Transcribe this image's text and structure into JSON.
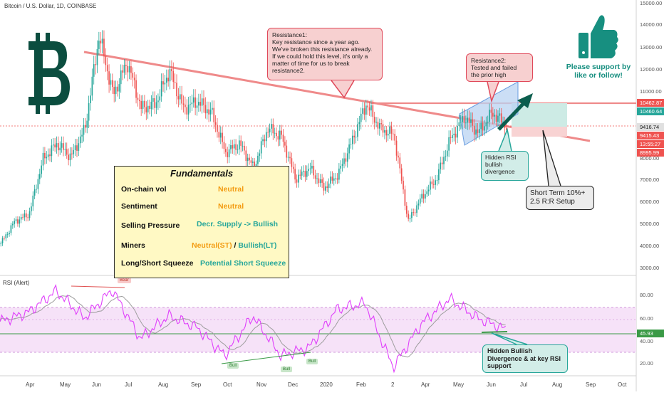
{
  "header": {
    "title": "Bitcoin / U.S. Dollar, 1D, COINBASE"
  },
  "rsi_panel": {
    "label": "RSI (Alert)",
    "signal_bear": "Bear",
    "signal_bull": "Bull"
  },
  "annotations": {
    "resistance1": [
      "Resistance1:",
      "Key resistance since a year ago.",
      "We've broken this resistance already.",
      "If we could hold this level, it's only a",
      "matter of time for us to break",
      "resistance2."
    ],
    "resistance2": [
      "Resistance2:",
      "Tested and failed",
      "the prior high"
    ],
    "hidden_rsi": [
      "Hidden RSI",
      "bullish",
      "divergence"
    ],
    "short_term": [
      "Short Term 10%+",
      "2.5 R:R Setup"
    ],
    "hidden_bullish": [
      "Hidden Bullish",
      "Divergence & at key RSI",
      "support"
    ],
    "support": [
      "Please support by",
      "like or follow!"
    ]
  },
  "fundamentals": {
    "title": "Fundamentals",
    "rows": [
      {
        "label": "On-chain vol",
        "value": "Neutral"
      },
      {
        "label": "Sentiment",
        "value": "Neutral"
      },
      {
        "label": "Selling Pressure",
        "value": "Decr. Supply -> Bullish"
      },
      {
        "label": "Miners",
        "value_a": "Neutral(ST)",
        "sep": " / ",
        "value_b": "Bullish(LT)"
      },
      {
        "label": "Long/Short Squeeze",
        "value": "Potential Short Squeeze"
      }
    ]
  },
  "colors": {
    "up": "#26a69a",
    "down": "#ef5350",
    "neutral_text": "#f39c12",
    "bullish_text": "#26a69a",
    "rsi_line": "#e040fb",
    "brand": "#0b4d3f"
  },
  "icons": {
    "logo": "bitcoin-logo",
    "thumb": "thumbs-up-icon"
  },
  "chart_data": {
    "type": "candlestick",
    "title": "Bitcoin / U.S. Dollar, 1D, COINBASE",
    "x_ticks": [
      "Apr",
      "May",
      "Jun",
      "Jul",
      "Aug",
      "Sep",
      "Oct",
      "Nov",
      "Dec",
      "2020",
      "Feb",
      "2",
      "Apr",
      "May",
      "Jun",
      "Jul",
      "Aug",
      "Sep",
      "Oct"
    ],
    "y_ticks": [
      "15000.00",
      "14000.00",
      "13000.00",
      "12000.00",
      "11000.00",
      "10000.00",
      "9000.00",
      "8000.00",
      "7000.00",
      "6000.00",
      "5000.00",
      "4000.00",
      "3000.00"
    ],
    "ylim": [
      3000,
      15000
    ],
    "price_tags": [
      {
        "label": "10462.87",
        "color": "#ef5350"
      },
      {
        "label": "10460.64",
        "color": "#26a69a"
      },
      {
        "label": "9416.74",
        "color": "#e0e0e0"
      },
      {
        "label": "9415.43",
        "color": "#ef5350"
      },
      {
        "label": "13:55:27",
        "color": "#ef5350"
      },
      {
        "label": "8995.99",
        "color": "#ef5350"
      }
    ],
    "close_path": [
      [
        "Apr 2019",
        4100
      ],
      [
        "Apr 15",
        5100
      ],
      [
        "May 1",
        5400
      ],
      [
        "May 15",
        7900
      ],
      [
        "May 30",
        8600
      ],
      [
        "Jun 10",
        8000
      ],
      [
        "Jun 20",
        9300
      ],
      [
        "Jun 26",
        13500
      ],
      [
        "Jul 1",
        10800
      ],
      [
        "Jul 10",
        12300
      ],
      [
        "Jul 20",
        10200
      ],
      [
        "Aug 1",
        10400
      ],
      [
        "Aug 6",
        11900
      ],
      [
        "Aug 20",
        10200
      ],
      [
        "Sep 1",
        10500
      ],
      [
        "Sep 20",
        10000
      ],
      [
        "Sep 26",
        8200
      ],
      [
        "Oct 10",
        8600
      ],
      [
        "Oct 20",
        7500
      ],
      [
        "Oct 26",
        9300
      ],
      [
        "Nov 10",
        8900
      ],
      [
        "Nov 25",
        7000
      ],
      [
        "Dec 5",
        7500
      ],
      [
        "Dec 18",
        6600
      ],
      [
        "Jan 1 2020",
        7200
      ],
      [
        "Jan 20",
        8700
      ],
      [
        "Feb 12",
        10400
      ],
      [
        "Feb 25",
        9300
      ],
      [
        "Mar 5",
        9000
      ],
      [
        "Mar 12",
        5100
      ],
      [
        "Mar 20",
        6200
      ],
      [
        "Apr 10",
        7000
      ],
      [
        "Apr 30",
        8800
      ],
      [
        "May 10",
        9800
      ],
      [
        "May 25",
        9100
      ],
      [
        "Jun 2",
        10000
      ],
      [
        "Jun 14",
        9416
      ]
    ],
    "rsi_ylim": [
      10,
      90
    ],
    "rsi_ticks": [
      "80.00",
      "60.00",
      "45.93",
      "40.00",
      "20.00"
    ],
    "rsi_path": [
      [
        "Apr 2019",
        57
      ],
      [
        "Apr 20",
        65
      ],
      [
        "May 15",
        84
      ],
      [
        "Jun 1",
        60
      ],
      [
        "Jun 26",
        85
      ],
      [
        "Jul 15",
        42
      ],
      [
        "Aug 6",
        62
      ],
      [
        "Sep 1",
        52
      ],
      [
        "Sep 26",
        27
      ],
      [
        "Oct 26",
        62
      ],
      [
        "Nov 25",
        27
      ],
      [
        "Dec 18",
        34
      ],
      [
        "Jan 20",
        68
      ],
      [
        "Feb 12",
        73
      ],
      [
        "Mar 12",
        17
      ],
      [
        "Apr 10",
        55
      ],
      [
        "May 10",
        77
      ],
      [
        "Jun 2",
        60
      ],
      [
        "Jun 14",
        50
      ]
    ]
  }
}
